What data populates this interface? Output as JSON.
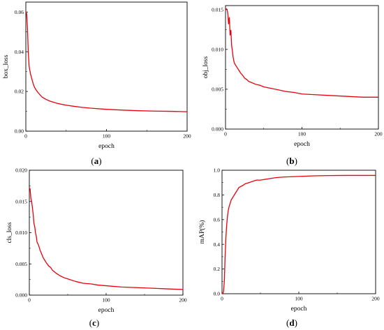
{
  "colors": {
    "line": "#e8000b",
    "axis": "#000000",
    "background": "#ffffff"
  },
  "chart_data": [
    {
      "type": "line",
      "panel_label": "(a)",
      "panel_open": "(",
      "panel_letter": "a",
      "panel_close": ")",
      "xlabel": "epoch",
      "ylabel": "box_loss",
      "xlim": [
        0,
        200
      ],
      "ylim": [
        0,
        0.065
      ],
      "xticks": [
        "0",
        "100",
        "200"
      ],
      "yticks": [
        "0.00",
        "0.02",
        "0.04",
        "0.06"
      ],
      "ytick_values": [
        0,
        0.02,
        0.04,
        0.06
      ],
      "xtick_values": [
        0,
        100,
        200
      ],
      "series": [
        {
          "x": [
            0,
            1,
            2,
            3,
            4,
            5,
            6,
            8,
            10,
            12,
            15,
            20,
            25,
            30,
            40,
            50,
            60,
            70,
            80,
            100,
            120,
            140,
            160,
            180,
            200
          ],
          "y": [
            0.06,
            0.0592,
            0.052,
            0.04,
            0.033,
            0.0305,
            0.0285,
            0.0255,
            0.0228,
            0.0212,
            0.0195,
            0.0172,
            0.016,
            0.0151,
            0.0139,
            0.0131,
            0.0125,
            0.012,
            0.0116,
            0.011,
            0.0106,
            0.0103,
            0.0101,
            0.01,
            0.0098
          ]
        }
      ]
    },
    {
      "type": "line",
      "panel_label": "(b)",
      "panel_open": "(",
      "panel_letter": "b",
      "panel_close": ")",
      "xlabel": "epoch",
      "ylabel": "obj_loss",
      "xlim": [
        0,
        200
      ],
      "ylim": [
        0,
        0.0155
      ],
      "xticks": [
        "0",
        "100",
        "200"
      ],
      "yticks": [
        "0.000",
        "0.005",
        "0.010",
        "0.015"
      ],
      "ytick_values": [
        0,
        0.005,
        0.01,
        0.015
      ],
      "xtick_values": [
        0,
        100,
        200
      ],
      "series": [
        {
          "x": [
            0,
            1,
            2,
            3,
            4,
            5,
            6,
            7,
            8,
            9,
            10,
            11,
            12,
            14,
            16,
            18,
            20,
            22,
            25,
            28,
            30,
            35,
            40,
            45,
            50,
            60,
            70,
            80,
            90,
            100,
            120,
            140,
            160,
            180,
            200
          ],
          "y": [
            0.015,
            0.0151,
            0.015,
            0.0145,
            0.0132,
            0.014,
            0.0118,
            0.0124,
            0.0105,
            0.0098,
            0.009,
            0.0085,
            0.0082,
            0.0079,
            0.0076,
            0.0073,
            0.007,
            0.0068,
            0.0064,
            0.0062,
            0.006,
            0.0058,
            0.0056,
            0.0055,
            0.0053,
            0.0051,
            0.0049,
            0.0047,
            0.0046,
            0.0044,
            0.0043,
            0.0042,
            0.0041,
            0.004,
            0.004
          ]
        }
      ]
    },
    {
      "type": "line",
      "panel_label": "(c)",
      "panel_open": "(",
      "panel_letter": "c",
      "panel_close": ")",
      "xlabel": "epoch",
      "ylabel": "cls_loss",
      "xlim": [
        0,
        200
      ],
      "ylim": [
        0,
        0.02
      ],
      "xticks": [
        "0",
        "100",
        "200"
      ],
      "yticks": [
        "0.000",
        "0.005",
        "0.010",
        "0.015",
        "0.020"
      ],
      "ytick_values": [
        0,
        0.005,
        0.01,
        0.015,
        0.02
      ],
      "xtick_values": [
        0,
        100,
        200
      ],
      "series": [
        {
          "x": [
            0,
            1,
            2,
            3,
            4,
            5,
            6,
            7,
            8,
            9,
            10,
            12,
            14,
            16,
            18,
            20,
            22,
            25,
            28,
            30,
            35,
            40,
            45,
            50,
            60,
            70,
            80,
            90,
            100,
            120,
            140,
            160,
            180,
            200
          ],
          "y": [
            0.0172,
            0.017,
            0.0155,
            0.015,
            0.014,
            0.013,
            0.0115,
            0.011,
            0.01,
            0.0095,
            0.0085,
            0.008,
            0.0072,
            0.0066,
            0.006,
            0.0056,
            0.0052,
            0.0047,
            0.0044,
            0.004,
            0.0035,
            0.0031,
            0.0028,
            0.0026,
            0.0022,
            0.0019,
            0.0018,
            0.0016,
            0.0015,
            0.0013,
            0.0012,
            0.0011,
            0.001,
            0.0009
          ]
        }
      ]
    },
    {
      "type": "line",
      "panel_label": "(d)",
      "panel_open": "(",
      "panel_letter": "d",
      "panel_close": ")",
      "xlabel": "epoch",
      "ylabel": "mAP(%)",
      "xlim": [
        0,
        200
      ],
      "ylim": [
        0,
        1.0
      ],
      "xticks": [
        "0",
        "100",
        "200"
      ],
      "yticks": [
        "0.0",
        "0.2",
        "0.4",
        "0.6",
        "0.8",
        "1.0"
      ],
      "ytick_values": [
        0,
        0.2,
        0.4,
        0.6,
        0.8,
        1.0
      ],
      "xtick_values": [
        0,
        100,
        200
      ],
      "series": [
        {
          "x": [
            0,
            1,
            2,
            3,
            4,
            5,
            6,
            7,
            8,
            9,
            10,
            12,
            14,
            16,
            18,
            20,
            22,
            25,
            28,
            30,
            35,
            40,
            45,
            50,
            60,
            70,
            80,
            100,
            120,
            140,
            160,
            180,
            200
          ],
          "y": [
            0.0,
            0.0,
            0.02,
            0.1,
            0.3,
            0.45,
            0.55,
            0.62,
            0.67,
            0.7,
            0.72,
            0.76,
            0.78,
            0.8,
            0.82,
            0.84,
            0.86,
            0.87,
            0.88,
            0.89,
            0.9,
            0.91,
            0.92,
            0.92,
            0.93,
            0.94,
            0.945,
            0.95,
            0.955,
            0.957,
            0.958,
            0.958,
            0.958
          ]
        }
      ]
    }
  ]
}
